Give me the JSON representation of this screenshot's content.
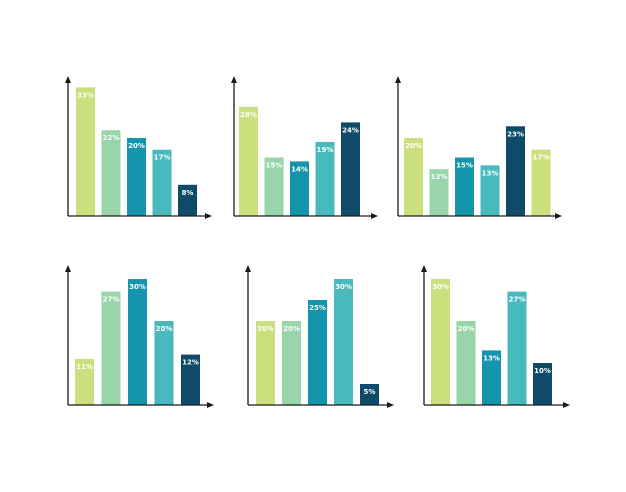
{
  "chart_data": [
    {
      "type": "bar",
      "values": [
        33,
        22,
        20,
        17,
        8
      ],
      "labels": [
        "33%",
        "22%",
        "20%",
        "17%",
        "8%"
      ],
      "colors": [
        "#cbe07d",
        "#98d5ab",
        "#1595ab",
        "#48b9bc",
        "#0f4a69"
      ],
      "label_colors": [
        "#ffffff",
        "#ffffff",
        "#ffffff",
        "#ffffff",
        "#ffffff"
      ]
    },
    {
      "type": "bar",
      "values": [
        28,
        15,
        14,
        19,
        24
      ],
      "labels": [
        "28%",
        "15%",
        "14%",
        "19%",
        "24%"
      ],
      "colors": [
        "#cbe07d",
        "#98d5ab",
        "#1595ab",
        "#48b9bc",
        "#0f4a69"
      ],
      "label_colors": [
        "#ffffff",
        "#ffffff",
        "#ffffff",
        "#ffffff",
        "#ffffff"
      ]
    },
    {
      "type": "bar",
      "values": [
        20,
        12,
        15,
        13,
        23,
        17
      ],
      "labels": [
        "20%",
        "12%",
        "15%",
        "13%",
        "23%",
        "17%"
      ],
      "colors": [
        "#cbe07d",
        "#98d5ab",
        "#1595ab",
        "#48b9bc",
        "#0f4a69",
        "#cbe07d"
      ],
      "label_colors": [
        "#ffffff",
        "#ffffff",
        "#ffffff",
        "#ffffff",
        "#ffffff",
        "#ffffff"
      ]
    },
    {
      "type": "bar",
      "values": [
        11,
        27,
        30,
        20,
        12
      ],
      "labels": [
        "11%",
        "27%",
        "30%",
        "20%",
        "12%"
      ],
      "colors": [
        "#cbe07d",
        "#98d5ab",
        "#1595ab",
        "#48b9bc",
        "#0f4a69"
      ],
      "label_colors": [
        "#ffffff",
        "#ffffff",
        "#ffffff",
        "#ffffff",
        "#ffffff"
      ]
    },
    {
      "type": "bar",
      "values": [
        20,
        20,
        25,
        30,
        5
      ],
      "labels": [
        "20%",
        "20%",
        "25%",
        "30%",
        "5%"
      ],
      "colors": [
        "#cbe07d",
        "#98d5ab",
        "#1595ab",
        "#48b9bc",
        "#0f4a69"
      ],
      "label_colors": [
        "#ffffff",
        "#ffffff",
        "#ffffff",
        "#ffffff",
        "#ffffff"
      ]
    },
    {
      "type": "bar",
      "values": [
        30,
        20,
        13,
        27,
        10
      ],
      "labels": [
        "30%",
        "20%",
        "13%",
        "27%",
        "10%"
      ],
      "colors": [
        "#cbe07d",
        "#98d5ab",
        "#1595ab",
        "#48b9bc",
        "#0f4a69"
      ],
      "label_colors": [
        "#ffffff",
        "#ffffff",
        "#ffffff",
        "#ffffff",
        "#ffffff"
      ]
    }
  ],
  "colors": {
    "axis": "#1a1a1a",
    "background": "#ffffff"
  }
}
